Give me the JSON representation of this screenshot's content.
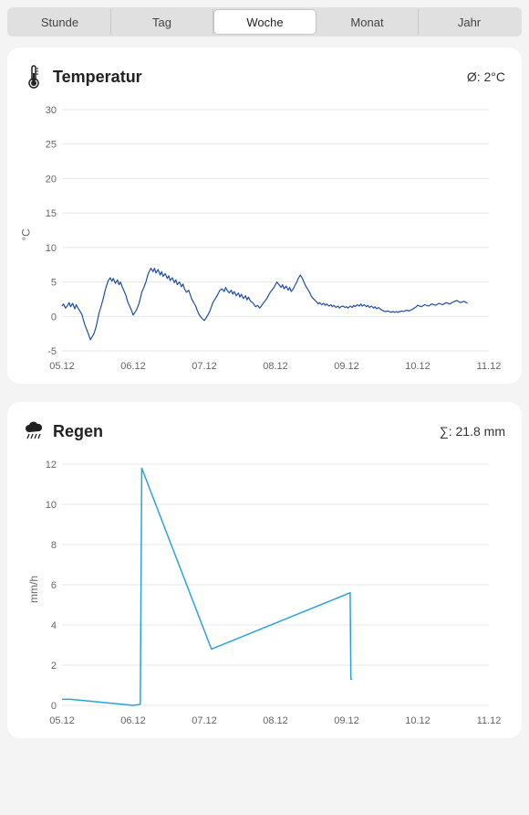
{
  "tabs": {
    "items": [
      {
        "label": "Stunde"
      },
      {
        "label": "Tag"
      },
      {
        "label": "Woche"
      },
      {
        "label": "Monat"
      },
      {
        "label": "Jahr"
      }
    ],
    "active_index": 2
  },
  "temperature_card": {
    "title": "Temperatur",
    "stat_label": "Ø: 2°C",
    "chart": {
      "type": "line",
      "y_axis_label": "°C",
      "ylim": [
        -5,
        30
      ],
      "ytick_step": 5,
      "x_categories": [
        "05.12",
        "06.12",
        "07.12",
        "08.12",
        "09.12",
        "10.12",
        "11.12"
      ],
      "series_color": "#1f4ea1",
      "series_width": 1.2,
      "grid_color": "#e8e8e8",
      "axis_color": "#cccccc",
      "background_color": "#ffffff",
      "tick_fontsize": 11,
      "data_x": [
        0.0,
        0.02,
        0.05,
        0.08,
        0.1,
        0.12,
        0.15,
        0.18,
        0.2,
        0.22,
        0.25,
        0.28,
        0.3,
        0.32,
        0.35,
        0.38,
        0.4,
        0.42,
        0.45,
        0.48,
        0.5,
        0.52,
        0.55,
        0.58,
        0.6,
        0.62,
        0.65,
        0.68,
        0.7,
        0.72,
        0.75,
        0.78,
        0.8,
        0.82,
        0.85,
        0.88,
        0.9,
        0.92,
        0.95,
        0.98,
        1.0,
        1.02,
        1.05,
        1.08,
        1.1,
        1.12,
        1.15,
        1.18,
        1.2,
        1.22,
        1.25,
        1.28,
        1.3,
        1.32,
        1.35,
        1.38,
        1.4,
        1.42,
        1.45,
        1.48,
        1.5,
        1.52,
        1.55,
        1.58,
        1.6,
        1.62,
        1.65,
        1.68,
        1.7,
        1.72,
        1.75,
        1.78,
        1.8,
        1.82,
        1.85,
        1.88,
        1.9,
        1.92,
        1.95,
        1.98,
        2.0,
        2.02,
        2.05,
        2.08,
        2.1,
        2.12,
        2.15,
        2.18,
        2.2,
        2.22,
        2.25,
        2.28,
        2.3,
        2.32,
        2.35,
        2.38,
        2.4,
        2.42,
        2.45,
        2.48,
        2.5,
        2.52,
        2.55,
        2.58,
        2.6,
        2.62,
        2.65,
        2.68,
        2.7,
        2.72,
        2.75,
        2.78,
        2.8,
        2.82,
        2.85,
        2.88,
        2.9,
        2.92,
        2.95,
        2.98,
        3.0,
        3.02,
        3.05,
        3.08,
        3.1,
        3.12,
        3.15,
        3.18,
        3.2,
        3.22,
        3.25,
        3.28,
        3.3,
        3.32,
        3.35,
        3.38,
        3.4,
        3.42,
        3.45,
        3.48,
        3.5,
        3.52,
        3.55,
        3.58,
        3.6,
        3.62,
        3.65,
        3.68,
        3.7,
        3.72,
        3.75,
        3.78,
        3.8,
        3.82,
        3.85,
        3.88,
        3.9,
        3.92,
        3.95,
        3.98,
        4.0,
        4.02,
        4.05,
        4.08,
        4.1,
        4.12,
        4.15,
        4.18,
        4.2,
        4.22,
        4.25,
        4.28,
        4.3,
        4.32,
        4.35,
        4.38,
        4.4,
        4.42,
        4.45,
        4.48,
        4.5,
        4.52,
        4.55,
        4.58,
        4.6,
        4.62,
        4.65,
        4.68,
        4.7,
        4.72,
        4.75,
        4.78,
        4.8,
        4.82,
        4.85,
        4.88,
        4.9,
        4.92,
        4.95,
        4.98,
        5.0,
        5.05,
        5.1,
        5.15,
        5.2,
        5.25,
        5.3,
        5.35,
        5.4,
        5.45,
        5.5,
        5.55,
        5.6,
        5.65,
        5.7
      ],
      "data_y": [
        1.5,
        1.8,
        1.2,
        1.6,
        2.0,
        1.4,
        1.9,
        1.1,
        1.7,
        1.3,
        0.8,
        0.3,
        -0.5,
        -1.2,
        -2.0,
        -2.8,
        -3.4,
        -3.0,
        -2.5,
        -1.5,
        -0.5,
        0.5,
        1.5,
        2.6,
        3.5,
        4.3,
        5.2,
        5.6,
        5.1,
        5.5,
        4.8,
        5.3,
        4.6,
        5.0,
        4.2,
        3.5,
        3.0,
        2.2,
        1.5,
        0.8,
        0.2,
        0.5,
        1.0,
        1.8,
        2.6,
        3.5,
        4.2,
        5.0,
        5.8,
        6.4,
        7.0,
        6.5,
        7.0,
        6.3,
        6.8,
        6.0,
        6.5,
        5.8,
        6.2,
        5.5,
        5.9,
        5.2,
        5.6,
        4.9,
        5.3,
        4.6,
        5.0,
        4.3,
        4.7,
        4.0,
        3.5,
        3.8,
        3.2,
        2.6,
        2.0,
        1.5,
        0.9,
        0.4,
        -0.1,
        -0.4,
        -0.6,
        -0.3,
        0.2,
        0.8,
        1.4,
        2.0,
        2.5,
        3.0,
        3.4,
        3.8,
        4.0,
        3.6,
        4.2,
        3.8,
        3.4,
        3.8,
        3.2,
        3.6,
        3.0,
        3.4,
        2.8,
        3.2,
        2.6,
        3.0,
        2.4,
        2.8,
        2.2,
        2.0,
        1.7,
        1.4,
        1.6,
        1.2,
        1.5,
        1.8,
        2.2,
        2.6,
        3.0,
        3.4,
        3.8,
        4.2,
        4.6,
        5.0,
        4.6,
        4.2,
        4.6,
        4.0,
        4.4,
        3.8,
        4.2,
        3.6,
        4.0,
        4.6,
        5.0,
        5.5,
        6.0,
        5.5,
        5.0,
        4.5,
        4.0,
        3.5,
        3.0,
        2.7,
        2.4,
        2.1,
        1.8,
        2.0,
        1.7,
        1.9,
        1.6,
        1.8,
        1.5,
        1.7,
        1.4,
        1.6,
        1.3,
        1.5,
        1.2,
        1.4,
        1.5,
        1.3,
        1.4,
        1.2,
        1.5,
        1.3,
        1.6,
        1.4,
        1.7,
        1.5,
        1.8,
        1.5,
        1.7,
        1.4,
        1.6,
        1.3,
        1.5,
        1.2,
        1.4,
        1.1,
        1.3,
        1.0,
        0.9,
        0.8,
        0.7,
        0.8,
        0.7,
        0.6,
        0.7,
        0.6,
        0.7,
        0.6,
        0.7,
        0.8,
        0.7,
        0.8,
        0.9,
        0.8,
        0.9,
        1.0,
        1.2,
        1.4,
        1.6,
        1.4,
        1.7,
        1.5,
        1.8,
        1.6,
        1.9,
        1.7,
        2.0,
        1.8,
        2.1,
        2.3,
        2.0,
        2.2,
        1.9
      ]
    }
  },
  "rain_card": {
    "title": "Regen",
    "stat_label": "∑: 21.8 mm",
    "chart": {
      "type": "line",
      "y_axis_label": "mm/h",
      "ylim": [
        0,
        12
      ],
      "ytick_step": 2,
      "x_categories": [
        "05.12",
        "06.12",
        "07.12",
        "08.12",
        "09.12",
        "10.12",
        "11.12"
      ],
      "series_color": "#29a3e0",
      "series_width": 1.5,
      "grid_color": "#e8e8e8",
      "axis_color": "#cccccc",
      "background_color": "#ffffff",
      "tick_fontsize": 11,
      "data_x": [
        0.0,
        0.12,
        1.0,
        1.1,
        1.12,
        2.1,
        4.05,
        4.06,
        4.08
      ],
      "data_y": [
        0.3,
        0.3,
        0.0,
        0.05,
        11.8,
        2.8,
        5.6,
        1.3,
        1.3
      ]
    }
  }
}
